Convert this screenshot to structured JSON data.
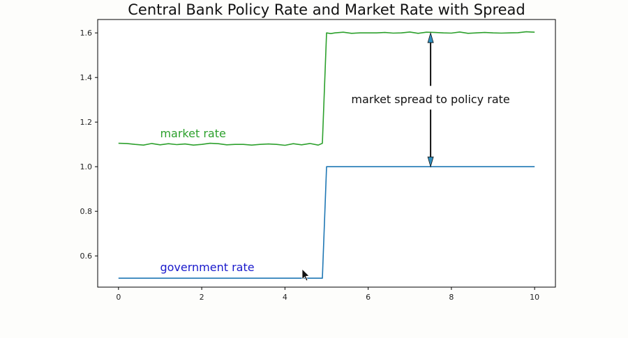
{
  "chart_data": {
    "type": "line",
    "title": "Central Bank Policy Rate and Market Rate with Spread",
    "xlabel": "",
    "ylabel": "",
    "xlim": [
      -0.5,
      10.5
    ],
    "ylim": [
      0.46,
      1.66
    ],
    "xticks": [
      0,
      2,
      4,
      6,
      8,
      10
    ],
    "yticks": [
      0.6,
      0.8,
      1.0,
      1.2,
      1.4,
      1.6
    ],
    "xtick_labels": [
      "0",
      "2",
      "4",
      "6",
      "8",
      "10"
    ],
    "ytick_labels": [
      "0.6",
      "0.8",
      "1.0",
      "1.2",
      "1.4",
      "1.6"
    ],
    "grid": false,
    "series": [
      {
        "name": "government rate",
        "color": "#1f77b4",
        "x": [
          0,
          0.5,
          1,
          1.5,
          2,
          2.5,
          3,
          3.5,
          4,
          4.5,
          4.9,
          5.0,
          5.1,
          5.5,
          6,
          6.5,
          7,
          7.5,
          8,
          8.5,
          9,
          9.5,
          10
        ],
        "y": [
          0.5,
          0.5,
          0.5,
          0.5,
          0.5,
          0.5,
          0.5,
          0.5,
          0.5,
          0.5,
          0.5,
          1.0,
          1.0,
          1.0,
          1.0,
          1.0,
          1.0,
          1.0,
          1.0,
          1.0,
          1.0,
          1.0,
          1.0
        ]
      },
      {
        "name": "market rate",
        "color": "#2ca02c",
        "x": [
          0,
          0.2,
          0.4,
          0.6,
          0.8,
          1.0,
          1.2,
          1.4,
          1.6,
          1.8,
          2.0,
          2.2,
          2.4,
          2.6,
          2.8,
          3.0,
          3.2,
          3.4,
          3.6,
          3.8,
          4.0,
          4.2,
          4.4,
          4.6,
          4.8,
          4.9,
          5.0,
          5.1,
          5.2,
          5.4,
          5.6,
          5.8,
          6.0,
          6.2,
          6.4,
          6.6,
          6.8,
          7.0,
          7.2,
          7.4,
          7.6,
          7.8,
          8.0,
          8.2,
          8.4,
          8.6,
          8.8,
          9.0,
          9.2,
          9.4,
          9.6,
          9.8,
          10.0
        ],
        "y": [
          1.105,
          1.104,
          1.1,
          1.097,
          1.104,
          1.098,
          1.103,
          1.099,
          1.102,
          1.097,
          1.1,
          1.105,
          1.103,
          1.098,
          1.1,
          1.1,
          1.097,
          1.1,
          1.102,
          1.1,
          1.096,
          1.103,
          1.098,
          1.104,
          1.097,
          1.105,
          1.6,
          1.597,
          1.6,
          1.603,
          1.598,
          1.6,
          1.6,
          1.6,
          1.602,
          1.599,
          1.6,
          1.604,
          1.598,
          1.603,
          1.602,
          1.6,
          1.599,
          1.604,
          1.598,
          1.6,
          1.602,
          1.6,
          1.599,
          1.6,
          1.601,
          1.605,
          1.603
        ]
      }
    ],
    "annotations": [
      {
        "text": "market rate",
        "x": 1.0,
        "y": 1.12,
        "color": "#2ca02c"
      },
      {
        "text": "government rate",
        "x": 1.0,
        "y": 0.52,
        "color": "#1a1acc"
      },
      {
        "text": "market spread to policy rate",
        "x": 7.5,
        "y": 1.3,
        "color": "#111111"
      }
    ],
    "arrow": {
      "x": 7.5,
      "y_top": 1.6,
      "y_bottom": 1.0,
      "head_color": "#2f8fbf"
    }
  }
}
